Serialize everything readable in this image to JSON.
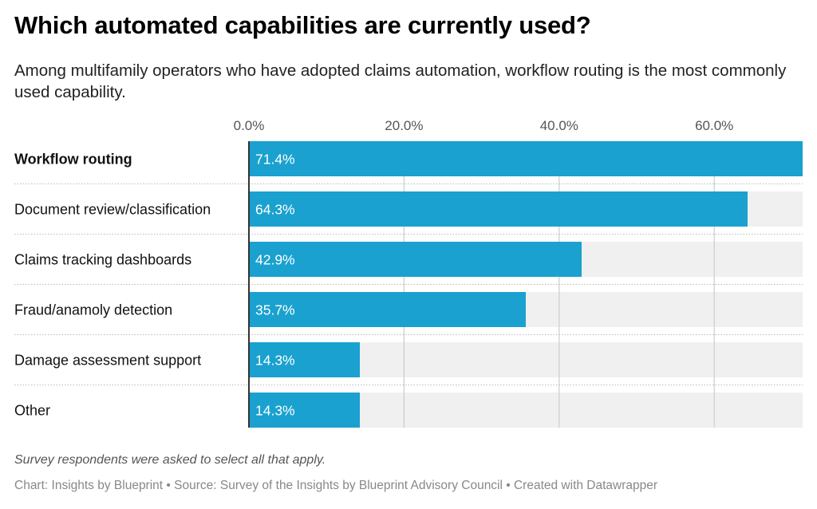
{
  "title": "Which automated capabilities are currently used?",
  "subtitle": "Among multifamily operators who have adopted claims automation, workflow routing is the most commonly used capability.",
  "note": "Survey respondents were asked to select all that apply.",
  "footer": "Chart: Insights by Blueprint • Source: Survey of the Insights by Blueprint Advisory Council • Created with Datawrapper",
  "colors": {
    "bar": "#1aa1cf",
    "background_bar": "#f0f0f0",
    "grid": "#cccccc"
  },
  "chart_data": {
    "type": "bar",
    "orientation": "horizontal",
    "title": "Which automated capabilities are currently used?",
    "categories": [
      "Workflow routing",
      "Document review/classification",
      "Claims tracking dashboards",
      "Fraud/anamoly detection",
      "Damage assessment support",
      "Other"
    ],
    "values": [
      71.4,
      64.3,
      42.9,
      35.7,
      14.3,
      14.3
    ],
    "value_labels": [
      "71.4%",
      "64.3%",
      "42.9%",
      "35.7%",
      "14.3%",
      "14.3%"
    ],
    "highlighted": [
      true,
      false,
      false,
      false,
      false,
      false
    ],
    "xticks": [
      0,
      20,
      40,
      60
    ],
    "xtick_labels": [
      "0.0%",
      "20.0%",
      "40.0%",
      "60.0%"
    ],
    "xlim": [
      0,
      71.4
    ],
    "xlabel": "",
    "ylabel": "",
    "grid": true
  }
}
